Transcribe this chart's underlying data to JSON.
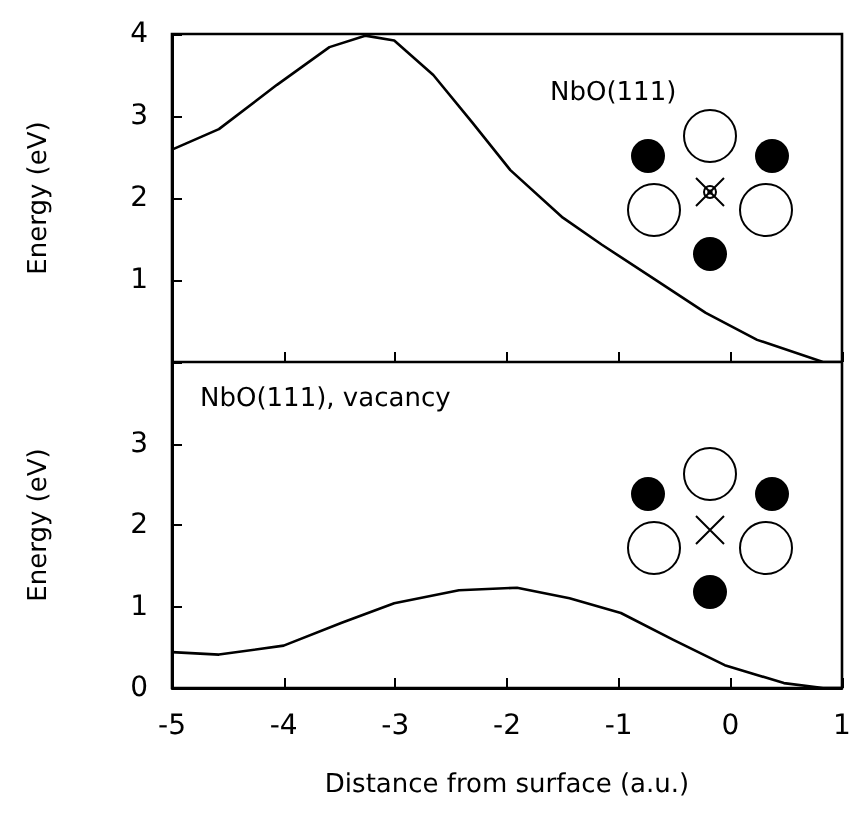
{
  "chart_data": [
    {
      "type": "line",
      "annotations": [
        "NbO(111)"
      ],
      "ylabel": "Energy (eV)",
      "xlim": [
        -5,
        1
      ],
      "xticks": [
        -5,
        -4,
        -3,
        -2,
        -1,
        0,
        1
      ],
      "ylim": [
        0,
        4
      ],
      "yticks": [
        {
          "value": 0,
          "label": null
        },
        1,
        2,
        3,
        4
      ],
      "tick_labels": "y",
      "marker": "none",
      "series": [
        {
          "color": "#000000",
          "x": [
            -5,
            -4.58,
            -4.06,
            -3.59,
            -3.27,
            -3.01,
            -2.66,
            -2.31,
            -1.97,
            -1.5,
            -1.15,
            -0.69,
            -0.22,
            0.24,
            0.83,
            1
          ],
          "values": [
            2.59,
            2.84,
            3.38,
            3.84,
            3.98,
            3.92,
            3.5,
            2.92,
            2.34,
            1.76,
            1.43,
            1.02,
            0.6,
            0.27,
            0,
            0
          ]
        }
      ]
    },
    {
      "type": "line",
      "annotations": [
        "NbO(111), vacancy"
      ],
      "xlabel": "Distance from surface (a.u.)",
      "ylabel": "Energy (eV)",
      "xlim": [
        -5,
        1
      ],
      "xticks": [
        -5,
        -4,
        -3,
        -2,
        -1,
        0,
        1
      ],
      "ylim": [
        0,
        4
      ],
      "yticks": [
        0,
        1,
        2,
        3,
        {
          "value": 4,
          "label": null
        }
      ],
      "marker": "none",
      "series": [
        {
          "color": "#000000",
          "x": [
            -5,
            -4.58,
            -4,
            -3.48,
            -3.01,
            -2.43,
            -1.91,
            -1.44,
            -0.98,
            -0.51,
            -0.05,
            0.48,
            0.83,
            1
          ],
          "values": [
            0.44,
            0.41,
            0.52,
            0.8,
            1.04,
            1.2,
            1.23,
            1.1,
            0.92,
            0.59,
            0.28,
            0.06,
            0,
            0
          ]
        }
      ]
    }
  ]
}
